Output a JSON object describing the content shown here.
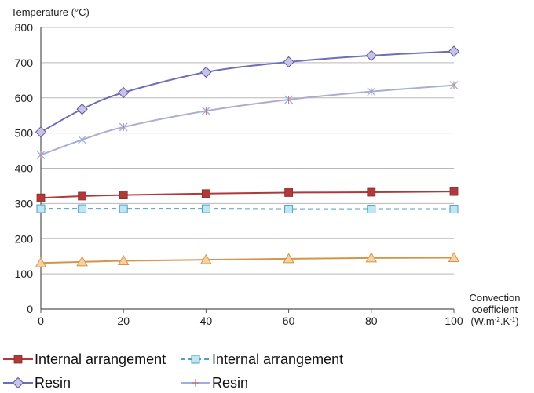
{
  "chart_data": {
    "type": "line",
    "ylabel": "Temperature (°C)",
    "xlabel_lines": [
      "Convection",
      "coefficient",
      "(W.m-2.K-1)"
    ],
    "x": [
      0,
      10,
      20,
      40,
      60,
      80,
      100
    ],
    "xticks": [
      0,
      20,
      40,
      60,
      80,
      100
    ],
    "yticks": [
      0,
      100,
      200,
      300,
      400,
      500,
      600,
      700,
      800
    ],
    "xlim": [
      0,
      100
    ],
    "ylim": [
      0,
      800
    ],
    "grid": true,
    "legend_position": "bottom",
    "series": [
      {
        "name": "Internal arrangement",
        "color": "#b03a3a",
        "marker": "square",
        "dashed": false,
        "values": [
          316,
          321,
          324,
          328,
          331,
          332,
          334
        ]
      },
      {
        "name": "Internal arrangement",
        "color": "#4f9fc4",
        "marker": "square-open",
        "dashed": true,
        "values": [
          285,
          285,
          285,
          285,
          284,
          284,
          284
        ]
      },
      {
        "name": "Resin",
        "color": "#6d6db8",
        "marker": "diamond",
        "dashed": false,
        "values": [
          503,
          568,
          615,
          673,
          702,
          720,
          732
        ]
      },
      {
        "name": "Resin",
        "color": "#9fb0e0",
        "marker": "star",
        "dashed": false,
        "values": [
          438,
          481,
          517,
          563,
          595,
          618,
          636
        ]
      },
      {
        "name": "",
        "color": "#d4954a",
        "marker": "triangle",
        "dashed": false,
        "values": [
          131,
          134,
          137,
          140,
          143,
          145,
          146
        ]
      }
    ]
  }
}
